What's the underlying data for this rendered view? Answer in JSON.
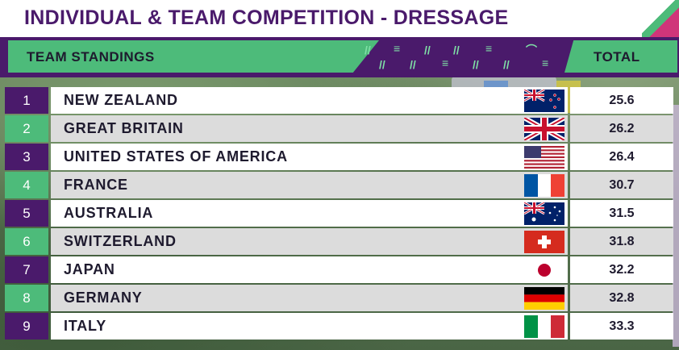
{
  "title": "INDIVIDUAL & TEAM COMPETITION - DRESSAGE",
  "header": {
    "left_label": "TEAM STANDINGS",
    "right_label": "TOTAL"
  },
  "colors": {
    "purple": "#4a1a6b",
    "green": "#4dbb7a",
    "row_light": "#ffffff",
    "row_dark": "#dcdcdc"
  },
  "rows": [
    {
      "rank": "1",
      "team": "NEW ZEALAND",
      "flag": "new-zealand-flag",
      "total": "25.6"
    },
    {
      "rank": "2",
      "team": "GREAT BRITAIN",
      "flag": "great-britain-flag",
      "total": "26.2"
    },
    {
      "rank": "3",
      "team": "UNITED STATES OF AMERICA",
      "flag": "usa-flag",
      "total": "26.4"
    },
    {
      "rank": "4",
      "team": "FRANCE",
      "flag": "france-flag",
      "total": "30.7"
    },
    {
      "rank": "5",
      "team": "AUSTRALIA",
      "flag": "australia-flag",
      "total": "31.5"
    },
    {
      "rank": "6",
      "team": "SWITZERLAND",
      "flag": "switzerland-flag",
      "total": "31.8"
    },
    {
      "rank": "7",
      "team": "JAPAN",
      "flag": "japan-flag",
      "total": "32.2"
    },
    {
      "rank": "8",
      "team": "GERMANY",
      "flag": "germany-flag",
      "total": "32.8"
    },
    {
      "rank": "9",
      "team": "ITALY",
      "flag": "italy-flag",
      "total": "33.3"
    }
  ]
}
